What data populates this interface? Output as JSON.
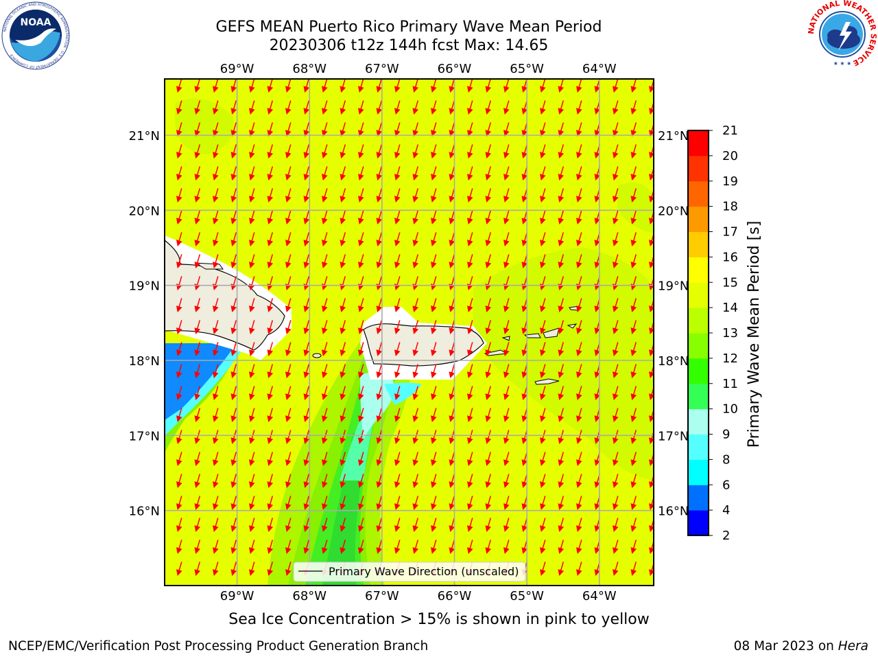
{
  "header": {
    "title_line1": "GEFS MEAN Puerto Rico Primary Wave Mean Period",
    "title_line2": "20230306 t12z 144h fcst   Max: 14.65"
  },
  "logos": {
    "left": {
      "icon": "noaa-logo-icon",
      "text": "NOAA",
      "ring_text": "NATIONAL OCEANIC AND ATMOSPHERIC ADMINISTRATION · U.S. DEPARTMENT OF COMMERCE"
    },
    "right": {
      "icon": "nws-logo-icon",
      "ring_text": "NATIONAL WEATHER SERVICE"
    }
  },
  "map": {
    "lon_ticks": [
      "69°W",
      "68°W",
      "67°W",
      "66°W",
      "65°W",
      "64°W"
    ],
    "lat_ticks": [
      "21°N",
      "20°N",
      "19°N",
      "18°N",
      "17°N",
      "16°N"
    ],
    "lon_values": [
      -69,
      -68,
      -67,
      -66,
      -65,
      -64
    ],
    "lat_values": [
      21,
      20,
      19,
      18,
      17,
      16
    ],
    "extent": {
      "lon_min": -70,
      "lon_max": -63.25,
      "lat_min": 15,
      "lat_max": 21.75
    },
    "grid": true,
    "arrow_direction": "toward south-southwest",
    "legend": {
      "label": "Primary Wave Direction (unscaled)",
      "placement": "bottom-center"
    },
    "colors": {
      "ocean_base": "#e6ff00",
      "land": "#efedde",
      "arrows": "#ff0000",
      "masked": "#ffffff"
    }
  },
  "colorbar": {
    "label": "Primary Wave Mean Period [s]",
    "ticks": [
      "2",
      "4",
      "6",
      "8",
      "9",
      "10",
      "11",
      "12",
      "13",
      "14",
      "15",
      "16",
      "17",
      "18",
      "19",
      "20",
      "21"
    ],
    "colors": [
      "#0000ff",
      "#0070ff",
      "#00ffff",
      "#55ffff",
      "#aaffee",
      "#33ff55",
      "#33ff00",
      "#88ff00",
      "#bbff00",
      "#e6ff00",
      "#ffff00",
      "#ffcc00",
      "#ff9900",
      "#ff6600",
      "#ff3300",
      "#ff0000"
    ]
  },
  "subtitle": "Sea Ice Concentration > 15% is shown in pink to yellow",
  "footer": {
    "left": "NCEP/EMC/Verification Post Processing Product Generation Branch",
    "right_prefix": "08 Mar 2023 on ",
    "right_machine": "Hera"
  }
}
